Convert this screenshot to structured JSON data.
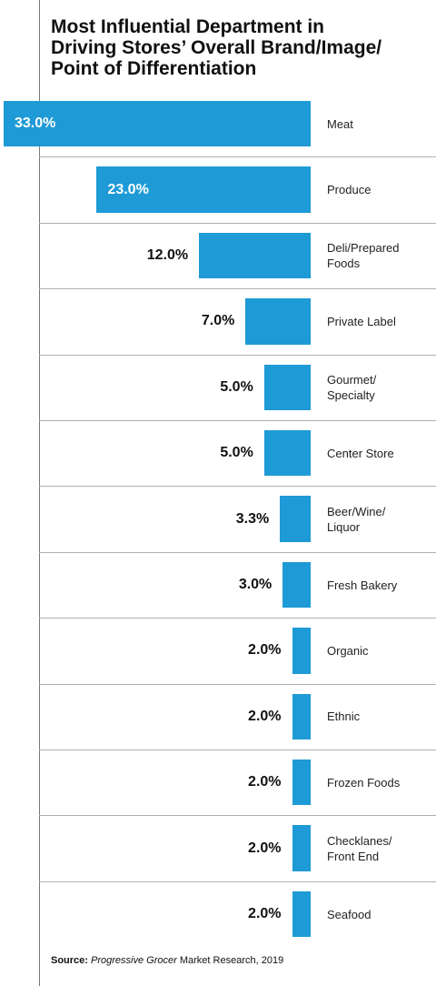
{
  "chart_data": {
    "type": "bar",
    "orientation": "horizontal",
    "title_lines": [
      "Most Influential Department in",
      "Driving Stores’ Overall Brand/Image/",
      "Point of Differentiation"
    ],
    "categories": [
      "Meat",
      "Produce",
      "Deli/Prepared Foods",
      "Private Label",
      "Gourmet/ Specialty",
      "Center Store",
      "Beer/Wine/ Liquor",
      "Fresh Bakery",
      "Organic",
      "Ethnic",
      "Frozen Foods",
      "Checklanes/ Front End",
      "Seafood"
    ],
    "values": [
      33.0,
      23.0,
      12.0,
      7.0,
      5.0,
      5.0,
      3.3,
      3.0,
      2.0,
      2.0,
      2.0,
      2.0,
      2.0
    ],
    "value_labels": [
      "33.0%",
      "23.0%",
      "12.0%",
      "7.0%",
      "5.0%",
      "5.0%",
      "3.3%",
      "3.0%",
      "2.0%",
      "2.0%",
      "2.0%",
      "2.0%",
      "2.0%"
    ],
    "bar_color": "#1e9ad6",
    "bar_direction": "right-aligned, extending left",
    "xlim": [
      0,
      33
    ]
  },
  "source": {
    "label": "Source:",
    "publication": "Progressive Grocer",
    "rest": " Market Research, 2019"
  }
}
